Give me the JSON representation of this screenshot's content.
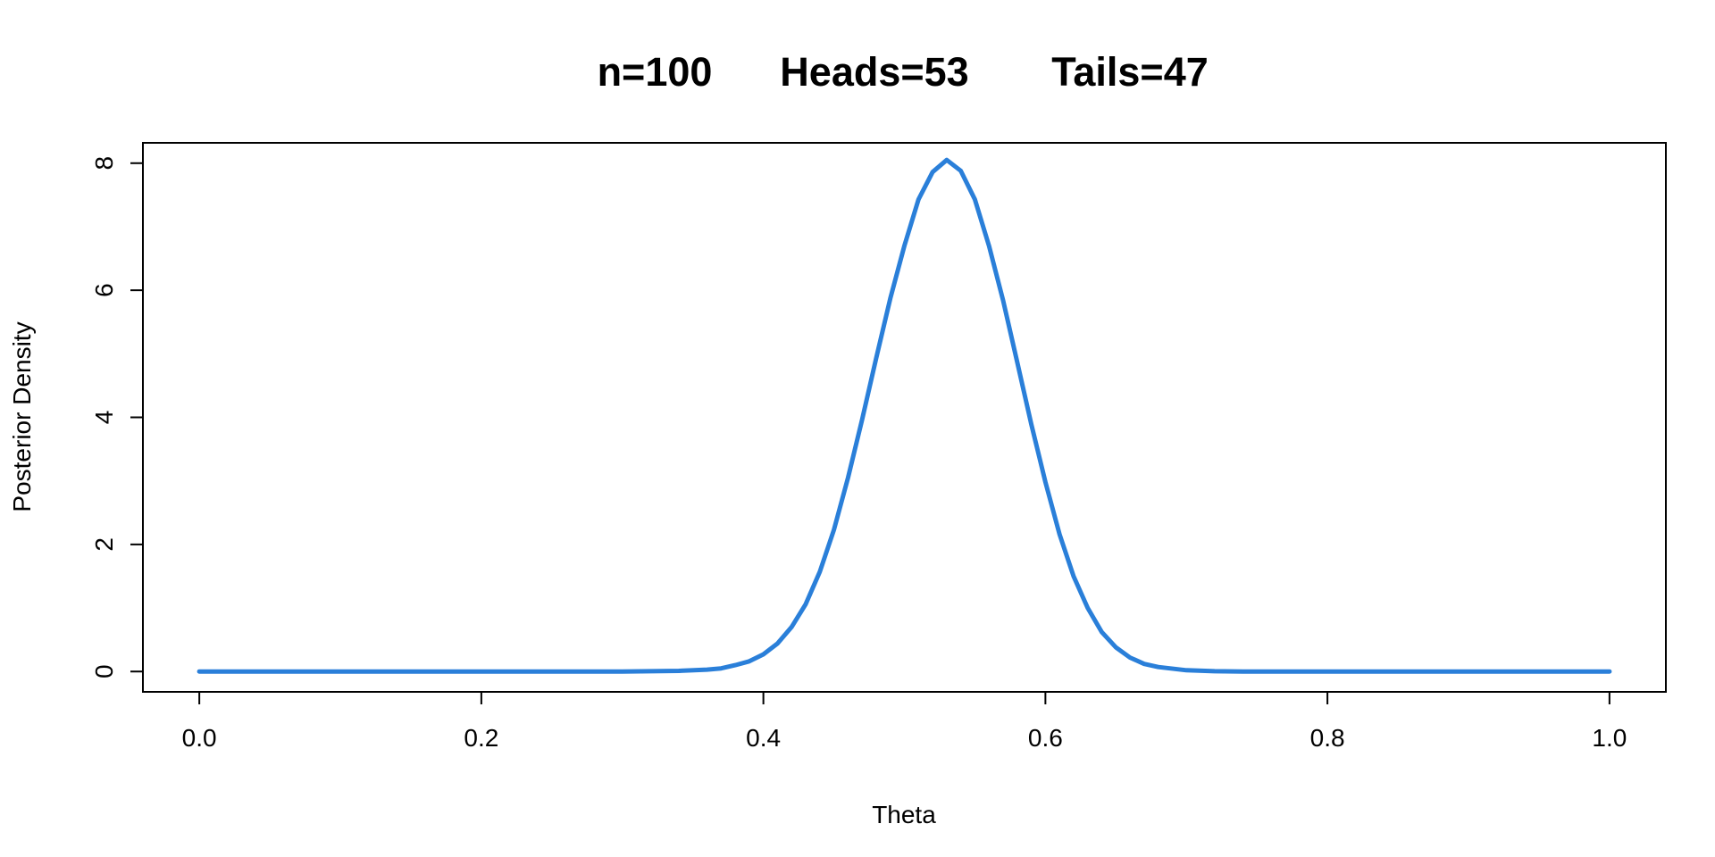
{
  "chart_data": {
    "type": "line",
    "title_parts": [
      "n=100",
      "Heads=53",
      "Tails=47"
    ],
    "xlabel": "Theta",
    "ylabel": "Posterior Density",
    "xlim": [
      -0.04,
      1.04
    ],
    "ylim": [
      -0.32,
      8.32
    ],
    "x_ticks": [
      0.0,
      0.2,
      0.4,
      0.6,
      0.8,
      1.0
    ],
    "x_tick_labels": [
      "0.0",
      "0.2",
      "0.4",
      "0.6",
      "0.8",
      "1.0"
    ],
    "y_ticks": [
      0,
      2,
      4,
      6,
      8
    ],
    "y_tick_labels": [
      "0",
      "2",
      "4",
      "6",
      "8"
    ],
    "grid": false,
    "legend": "none",
    "series": [
      {
        "color": "#2A7FD9",
        "x": [
          0.0,
          0.3,
          0.32,
          0.34,
          0.36,
          0.37,
          0.38,
          0.39,
          0.4,
          0.41,
          0.42,
          0.43,
          0.44,
          0.45,
          0.46,
          0.47,
          0.48,
          0.49,
          0.5,
          0.51,
          0.52,
          0.53,
          0.54,
          0.55,
          0.56,
          0.57,
          0.58,
          0.59,
          0.6,
          0.61,
          0.62,
          0.63,
          0.64,
          0.65,
          0.66,
          0.67,
          0.68,
          0.7,
          0.72,
          0.74,
          0.76,
          1.0
        ],
        "y": [
          0.0,
          0.0,
          0.005,
          0.01,
          0.03,
          0.05,
          0.1,
          0.16,
          0.27,
          0.44,
          0.7,
          1.06,
          1.57,
          2.23,
          3.05,
          3.96,
          4.93,
          5.87,
          6.7,
          7.43,
          7.86,
          8.05,
          7.88,
          7.43,
          6.7,
          5.84,
          4.87,
          3.89,
          2.98,
          2.16,
          1.5,
          1.0,
          0.62,
          0.38,
          0.22,
          0.12,
          0.07,
          0.02,
          0.005,
          0.0,
          0.0,
          0.0
        ]
      }
    ]
  }
}
